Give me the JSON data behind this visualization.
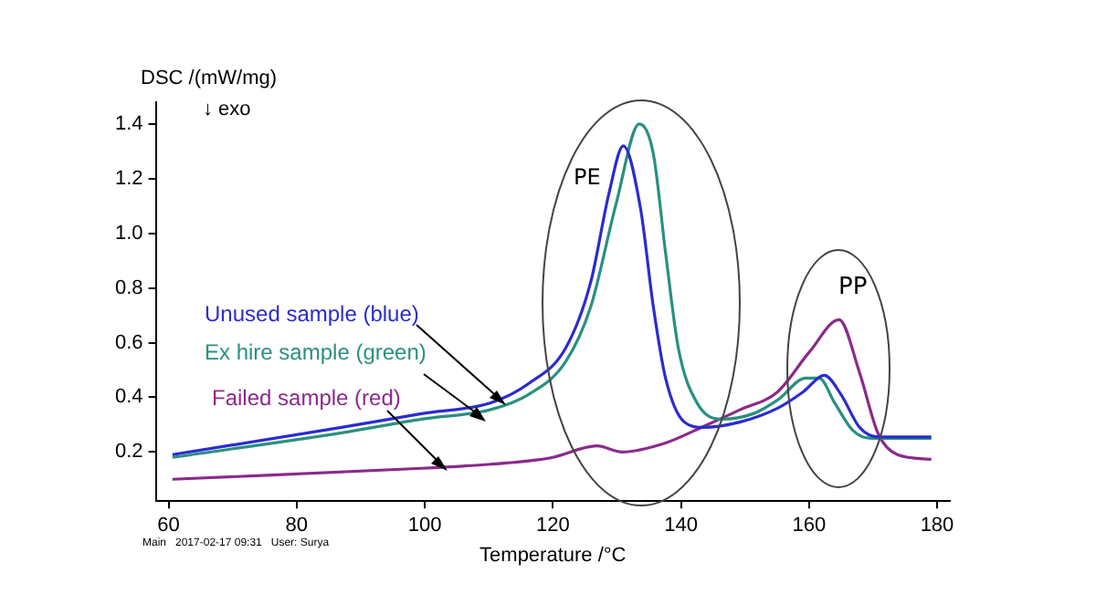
{
  "chart_data": {
    "type": "line",
    "xlabel": "Temperature /°C",
    "ylabel": "DSC /(mW/mg)",
    "xlim": [
      58,
      182
    ],
    "xticks": [
      60,
      80,
      100,
      120,
      140,
      160,
      180
    ],
    "ylim": [
      0.02,
      1.48
    ],
    "yticks": [
      0.2,
      0.4,
      0.6,
      0.8,
      {
        "value": 1,
        "label": "1.0"
      },
      1.2,
      1.4
    ],
    "grid": false,
    "legend": false,
    "marker": "none",
    "line_style": "solid",
    "annotations": [
      "↓ exo",
      "PE",
      "PP",
      "Main   2017-02-17 09:31   User: Surya"
    ],
    "series": [
      {
        "name": "Unused sample (blue)",
        "color": "#2b2bd0",
        "x": [
          60.6,
          87,
          99.5,
          110.3,
          116.2,
          122,
          125.9,
          128.8,
          131,
          133.7,
          135.7,
          137.6,
          140.5,
          143.5,
          149.3,
          155.1,
          159.1,
          162.4,
          165,
          167.9,
          170.8,
          179.1
        ],
        "values": [
          0.19,
          0.29,
          0.34,
          0.38,
          0.45,
          0.58,
          0.82,
          1.15,
          1.32,
          1.09,
          0.73,
          0.47,
          0.31,
          0.29,
          0.31,
          0.36,
          0.42,
          0.48,
          0.41,
          0.29,
          0.255,
          0.255
        ]
      },
      {
        "name": "Ex hire sample (green)",
        "color": "#2a9080",
        "x": [
          60.6,
          87,
          99.5,
          110.3,
          116.2,
          122,
          125.9,
          129.9,
          133.5,
          135.7,
          137.6,
          139.6,
          142.5,
          146.3,
          151.3,
          155.1,
          159.5,
          161.6,
          164,
          166.8,
          169.7,
          179.1
        ],
        "values": [
          0.18,
          0.27,
          0.32,
          0.355,
          0.41,
          0.53,
          0.73,
          1.11,
          1.4,
          1.29,
          0.93,
          0.58,
          0.38,
          0.32,
          0.34,
          0.39,
          0.47,
          0.47,
          0.38,
          0.28,
          0.25,
          0.25
        ]
      },
      {
        "name": "Failed sample (red)",
        "color": "#8b2a8a",
        "x": [
          60.6,
          99.5,
          110.3,
          116.2,
          120,
          126.9,
          130.8,
          137.6,
          143.5,
          149.3,
          155.1,
          160.1,
          164.7,
          167.9,
          170.8,
          173.8,
          179.1
        ],
        "values": [
          0.1,
          0.14,
          0.155,
          0.167,
          0.18,
          0.222,
          0.2,
          0.233,
          0.293,
          0.355,
          0.42,
          0.567,
          0.684,
          0.49,
          0.267,
          0.19,
          0.173
        ]
      }
    ]
  }
}
